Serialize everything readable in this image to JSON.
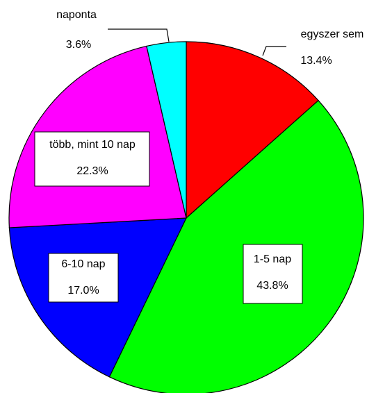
{
  "chart_data": {
    "type": "pie",
    "categories": [
      "egyszer sem",
      "1-5 nap",
      "6-10 nap",
      "több, mint 10 nap",
      "naponta"
    ],
    "values": [
      13.4,
      43.8,
      17.0,
      22.3,
      3.6
    ],
    "value_labels": [
      "13.4%",
      "43.8%",
      "17.0%",
      "22.3%",
      "3.6%"
    ],
    "colors": [
      "#ff0000",
      "#00ff00",
      "#0000ff",
      "#ff00ff",
      "#00ffff"
    ]
  }
}
